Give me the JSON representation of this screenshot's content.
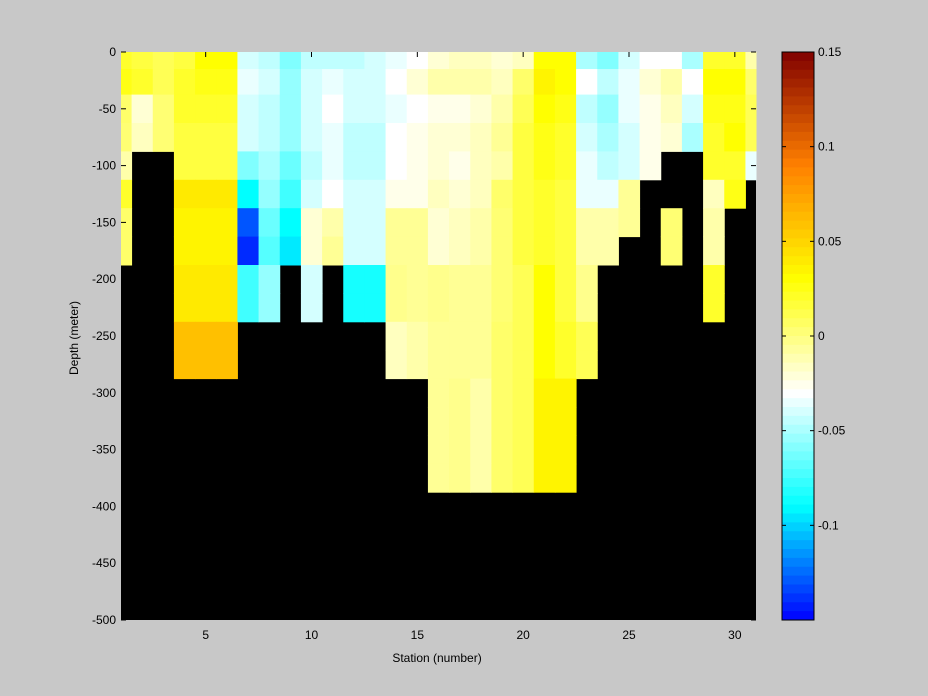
{
  "chart_data": {
    "type": "heatmap",
    "title": "",
    "xlabel": "Station (number)",
    "ylabel": "Depth (meter)",
    "xlim": [
      1,
      31
    ],
    "ylim": [
      -500,
      0
    ],
    "xticks": [
      5,
      10,
      15,
      20,
      25,
      30
    ],
    "yticks": [
      0,
      -50,
      -100,
      -150,
      -200,
      -250,
      -300,
      -350,
      -400,
      -450,
      -500
    ],
    "background_color": "#000000",
    "colorbar": {
      "limits": [
        -0.15,
        0.15
      ],
      "ticks": [
        0.15,
        0.1,
        0.05,
        0,
        -0.05,
        -0.1
      ],
      "tick_labels": [
        "0.15",
        "0.1",
        "0.05",
        "0",
        "-0.05",
        "-0.1"
      ],
      "colormap": [
        "#0000ff",
        "#00ffff",
        "#ffffff",
        "#ffff00",
        "#ff8000",
        "#800000"
      ]
    },
    "stations": [
      1,
      2,
      3,
      4,
      5,
      6,
      7,
      8,
      9,
      10,
      11,
      12,
      13,
      14,
      15,
      16,
      17,
      18,
      19,
      20,
      21,
      22,
      23,
      24,
      25,
      26,
      27,
      28,
      29,
      30,
      31
    ],
    "depth_bins": [
      -5,
      -25,
      -50,
      -75,
      -100,
      -125,
      -150,
      -175,
      -200,
      -225,
      -250,
      -275,
      -300,
      -325,
      -350,
      -375,
      -400
    ],
    "max_depth": [
      -200,
      -200,
      -100,
      -100,
      -300,
      -300,
      -250,
      -250,
      -200,
      -250,
      -200,
      -250,
      -250,
      -300,
      -300,
      -400,
      -400,
      -400,
      -400,
      -400,
      -400,
      -300,
      -300,
      -200,
      -150,
      -200,
      -100,
      -100,
      -250,
      -150,
      -125
    ],
    "values": [
      [
        0.02,
        0.015,
        0.01,
        0.015,
        0.03,
        0.03,
        -0.04,
        -0.045,
        -0.06,
        -0.045,
        -0.045,
        -0.045,
        -0.04,
        -0.035,
        -0.03,
        -0.02,
        -0.015,
        -0.015,
        -0.02,
        -0.015,
        0.03,
        0.03,
        -0.05,
        -0.06,
        -0.04,
        -0.03,
        -0.03,
        -0.05,
        0.02,
        0.02,
        -0.01
      ],
      [
        0.025,
        0.02,
        0.01,
        0.02,
        0.025,
        0.025,
        -0.035,
        -0.04,
        -0.055,
        -0.04,
        -0.035,
        -0.04,
        -0.04,
        -0.03,
        -0.02,
        -0.01,
        -0.01,
        -0.01,
        -0.015,
        0.005,
        0.035,
        0.03,
        -0.03,
        -0.045,
        -0.035,
        -0.02,
        -0.01,
        -0.03,
        0.03,
        0.03,
        0.005
      ],
      [
        0.005,
        -0.02,
        0.003,
        0.02,
        0.02,
        0.02,
        -0.04,
        -0.045,
        -0.055,
        -0.04,
        -0.03,
        -0.04,
        -0.04,
        -0.035,
        -0.03,
        -0.025,
        -0.025,
        -0.02,
        -0.01,
        0.01,
        0.03,
        0.025,
        -0.045,
        -0.055,
        -0.035,
        -0.025,
        -0.015,
        -0.04,
        0.025,
        0.025,
        0.01
      ],
      [
        0.003,
        -0.015,
        0.003,
        0.015,
        0.015,
        0.015,
        -0.04,
        -0.045,
        -0.055,
        -0.04,
        -0.035,
        -0.045,
        -0.045,
        -0.03,
        -0.025,
        -0.02,
        -0.02,
        -0.015,
        -0.005,
        0.015,
        0.025,
        0.02,
        -0.04,
        -0.05,
        -0.04,
        -0.025,
        -0.02,
        -0.05,
        0.02,
        0.03,
        0.01
      ],
      [
        -0.01,
        null,
        null,
        0.015,
        0.015,
        0.015,
        -0.06,
        -0.05,
        -0.065,
        -0.045,
        -0.035,
        -0.045,
        -0.045,
        -0.03,
        -0.025,
        -0.02,
        -0.025,
        -0.015,
        -0.01,
        0.015,
        0.025,
        0.02,
        -0.035,
        -0.045,
        -0.04,
        -0.025,
        null,
        null,
        0.02,
        0.02,
        -0.035
      ],
      [
        0.02,
        null,
        null,
        0.04,
        0.04,
        0.04,
        -0.09,
        -0.055,
        -0.075,
        -0.04,
        -0.03,
        -0.04,
        -0.04,
        -0.025,
        -0.025,
        -0.015,
        -0.02,
        -0.015,
        0.005,
        0.015,
        0.02,
        0.015,
        -0.035,
        -0.035,
        -0.005,
        null,
        null,
        null,
        -0.015,
        0.025,
        null
      ],
      [
        0.005,
        null,
        null,
        0.035,
        0.035,
        0.035,
        -0.13,
        -0.065,
        -0.09,
        -0.02,
        -0.01,
        -0.04,
        -0.04,
        -0.005,
        -0.005,
        -0.02,
        -0.015,
        -0.01,
        0.003,
        0.015,
        0.02,
        0.015,
        -0.01,
        -0.01,
        -0.005,
        null,
        0.003,
        null,
        -0.01,
        null,
        null
      ],
      [
        0.005,
        null,
        null,
        0.035,
        0.035,
        0.035,
        -0.14,
        -0.07,
        -0.095,
        -0.02,
        -0.005,
        -0.04,
        -0.04,
        -0.005,
        -0.005,
        -0.02,
        -0.015,
        -0.01,
        0.003,
        0.015,
        0.02,
        0.015,
        -0.01,
        -0.01,
        null,
        null,
        0.003,
        null,
        -0.01,
        null,
        null
      ],
      [
        null,
        null,
        null,
        0.04,
        0.04,
        0.04,
        -0.075,
        -0.055,
        null,
        -0.04,
        null,
        -0.085,
        -0.085,
        -0.003,
        -0.005,
        -0.003,
        -0.005,
        -0.005,
        0.003,
        0.01,
        0.03,
        0.015,
        -0.003,
        null,
        null,
        null,
        null,
        null,
        0.02,
        null,
        null
      ],
      [
        null,
        null,
        null,
        0.04,
        0.04,
        0.04,
        -0.075,
        -0.055,
        null,
        -0.04,
        null,
        -0.085,
        -0.085,
        -0.003,
        -0.005,
        -0.003,
        -0.005,
        -0.005,
        0.003,
        0.01,
        0.03,
        0.015,
        -0.003,
        null,
        null,
        null,
        null,
        null,
        0.02,
        null,
        null
      ],
      [
        null,
        null,
        null,
        0.06,
        0.06,
        0.06,
        null,
        null,
        null,
        null,
        null,
        null,
        null,
        -0.015,
        -0.01,
        -0.005,
        -0.005,
        -0.005,
        0.005,
        0.01,
        0.03,
        0.02,
        0.01,
        null,
        null,
        null,
        null,
        null,
        null,
        null,
        null
      ],
      [
        null,
        null,
        null,
        0.06,
        0.06,
        0.06,
        null,
        null,
        null,
        null,
        null,
        null,
        null,
        -0.015,
        -0.01,
        -0.005,
        -0.005,
        -0.005,
        0.005,
        0.01,
        0.03,
        0.02,
        0.01,
        null,
        null,
        null,
        null,
        null,
        null,
        null,
        null
      ],
      [
        null,
        null,
        null,
        null,
        null,
        null,
        null,
        null,
        null,
        null,
        null,
        null,
        null,
        null,
        null,
        -0.005,
        -0.003,
        -0.01,
        0.005,
        0.01,
        0.035,
        0.035,
        null,
        null,
        null,
        null,
        null,
        null,
        null,
        null,
        null
      ],
      [
        null,
        null,
        null,
        null,
        null,
        null,
        null,
        null,
        null,
        null,
        null,
        null,
        null,
        null,
        null,
        -0.005,
        -0.003,
        -0.01,
        0.005,
        0.01,
        0.035,
        0.035,
        null,
        null,
        null,
        null,
        null,
        null,
        null,
        null,
        null
      ],
      [
        null,
        null,
        null,
        null,
        null,
        null,
        null,
        null,
        null,
        null,
        null,
        null,
        null,
        null,
        null,
        -0.005,
        -0.003,
        -0.01,
        0.005,
        0.01,
        0.035,
        0.035,
        null,
        null,
        null,
        null,
        null,
        null,
        null,
        null,
        null
      ],
      [
        null,
        null,
        null,
        null,
        null,
        null,
        null,
        null,
        null,
        null,
        null,
        null,
        null,
        null,
        null,
        -0.005,
        -0.003,
        -0.01,
        0.005,
        0.01,
        0.035,
        0.035,
        null,
        null,
        null,
        null,
        null,
        null,
        null,
        null,
        null
      ]
    ]
  }
}
